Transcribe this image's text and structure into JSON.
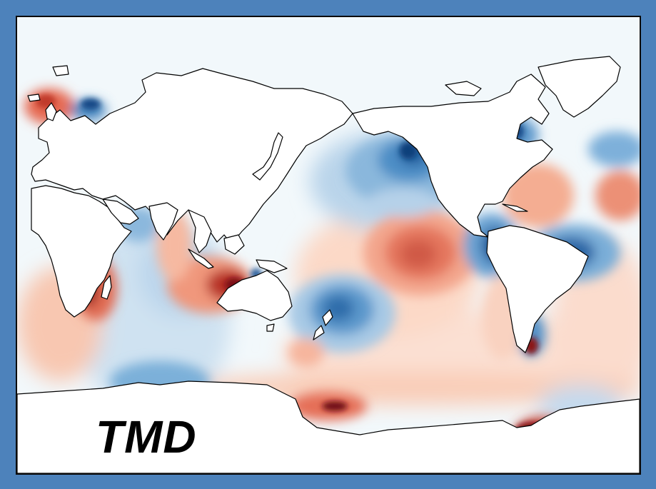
{
  "map": {
    "label": "TMD",
    "projection": "plate-carree",
    "field": "diverging",
    "colors": {
      "frame": "#4d82bb",
      "ocean_neutral": "#f2f8fb",
      "land": "#ffffff",
      "coastline": "#000000",
      "positive_strong": "#7a0a12",
      "positive_mid": "#d5604d",
      "positive_weak": "#f9c8b2",
      "negative_weak": "#c6dbef",
      "negative_mid": "#4a8ac4",
      "negative_strong": "#0d3f7a"
    }
  }
}
